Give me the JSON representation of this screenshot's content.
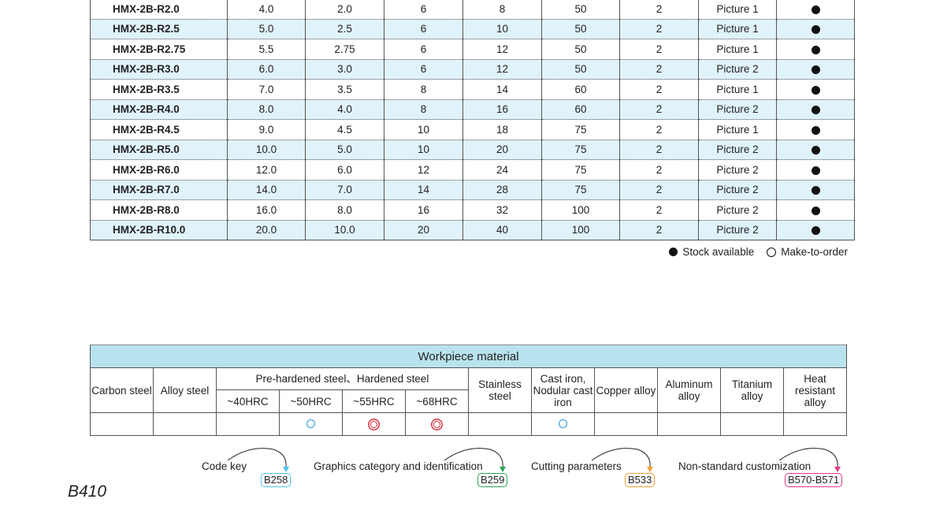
{
  "spec_rows": [
    [
      "HMX-2B-R2.0",
      "4.0",
      "2.0",
      "6",
      "8",
      "50",
      "2",
      "Picture 1",
      "stock"
    ],
    [
      "HMX-2B-R2.5",
      "5.0",
      "2.5",
      "6",
      "10",
      "50",
      "2",
      "Picture 1",
      "stock"
    ],
    [
      "HMX-2B-R2.75",
      "5.5",
      "2.75",
      "6",
      "12",
      "50",
      "2",
      "Picture 1",
      "stock"
    ],
    [
      "HMX-2B-R3.0",
      "6.0",
      "3.0",
      "6",
      "12",
      "50",
      "2",
      "Picture 2",
      "stock"
    ],
    [
      "HMX-2B-R3.5",
      "7.0",
      "3.5",
      "8",
      "14",
      "60",
      "2",
      "Picture 1",
      "stock"
    ],
    [
      "HMX-2B-R4.0",
      "8.0",
      "4.0",
      "8",
      "16",
      "60",
      "2",
      "Picture 2",
      "stock"
    ],
    [
      "HMX-2B-R4.5",
      "9.0",
      "4.5",
      "10",
      "18",
      "75",
      "2",
      "Picture 1",
      "stock"
    ],
    [
      "HMX-2B-R5.0",
      "10.0",
      "5.0",
      "10",
      "20",
      "75",
      "2",
      "Picture 2",
      "stock"
    ],
    [
      "HMX-2B-R6.0",
      "12.0",
      "6.0",
      "12",
      "24",
      "75",
      "2",
      "Picture 2",
      "stock"
    ],
    [
      "HMX-2B-R7.0",
      "14.0",
      "7.0",
      "14",
      "28",
      "75",
      "2",
      "Picture 2",
      "stock"
    ],
    [
      "HMX-2B-R8.0",
      "16.0",
      "8.0",
      "16",
      "32",
      "100",
      "2",
      "Picture 2",
      "stock"
    ],
    [
      "HMX-2B-R10.0",
      "20.0",
      "10.0",
      "20",
      "40",
      "100",
      "2",
      "Picture 2",
      "stock"
    ]
  ],
  "legend": {
    "stock": "Stock available",
    "order": "Make-to-order"
  },
  "workpiece": {
    "title": "Workpiece material",
    "carbon": "Carbon steel",
    "alloy": "Alloy steel",
    "hardened": "Pre-hardened steel、Hardened steel",
    "hrc": [
      "~40HRC",
      "~50HRC",
      "~55HRC",
      "~68HRC"
    ],
    "stainless": "Stainless steel",
    "cast": "Cast iron, Nodular cast iron",
    "copper": "Copper alloy",
    "aluminum": "Aluminum alloy",
    "titanium": "Titanium alloy",
    "heat": "Heat resistant alloy",
    "suitability": [
      "",
      "",
      "",
      "suitable",
      "excellent",
      "excellent",
      "",
      "suitable",
      "",
      "",
      "",
      ""
    ],
    "colors": {
      "suitable": "#1e9ad6",
      "excellent": "#e03040",
      "header": "#b8e3ee"
    }
  },
  "refs": [
    {
      "label": "Code key",
      "page": "B258",
      "color": "#4cc3ea"
    },
    {
      "label": "Graphics category and identification",
      "page": "B259",
      "color": "#2aa35a"
    },
    {
      "label": "Cutting parameters",
      "page": "B533",
      "color": "#f5a030"
    },
    {
      "label": "Non-standard customization",
      "page": "B570-B571",
      "color": "#e6398a"
    }
  ],
  "page_number": "B410"
}
